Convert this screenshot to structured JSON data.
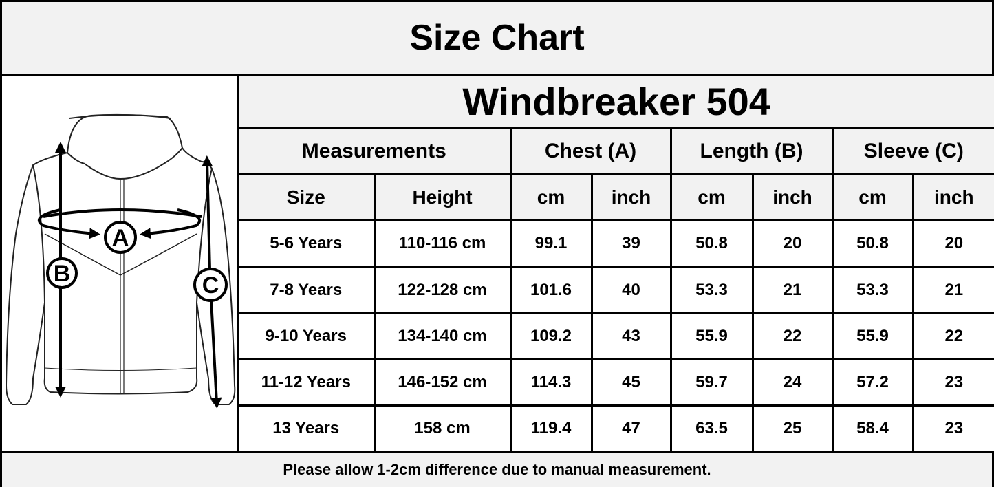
{
  "title": "Size Chart",
  "illustration": {
    "labels": [
      "A",
      "B",
      "C"
    ]
  },
  "table": {
    "model": "Windbreaker 504",
    "groups": [
      "Measurements",
      "Chest (A)",
      "Length (B)",
      "Sleeve (C)"
    ],
    "subheaders": [
      "Size",
      "Height",
      "cm",
      "inch",
      "cm",
      "inch",
      "cm",
      "inch"
    ],
    "rows": [
      [
        "5-6 Years",
        "110-116 cm",
        "99.1",
        "39",
        "50.8",
        "20",
        "50.8",
        "20"
      ],
      [
        "7-8 Years",
        "122-128 cm",
        "101.6",
        "40",
        "53.3",
        "21",
        "53.3",
        "21"
      ],
      [
        "9-10 Years",
        "134-140 cm",
        "109.2",
        "43",
        "55.9",
        "22",
        "55.9",
        "22"
      ],
      [
        "11-12 Years",
        "146-152 cm",
        "114.3",
        "45",
        "59.7",
        "24",
        "57.2",
        "23"
      ],
      [
        "13 Years",
        "158 cm",
        "119.4",
        "47",
        "63.5",
        "25",
        "58.4",
        "23"
      ]
    ]
  },
  "footer": "Please allow 1-2cm difference due to manual measurement."
}
